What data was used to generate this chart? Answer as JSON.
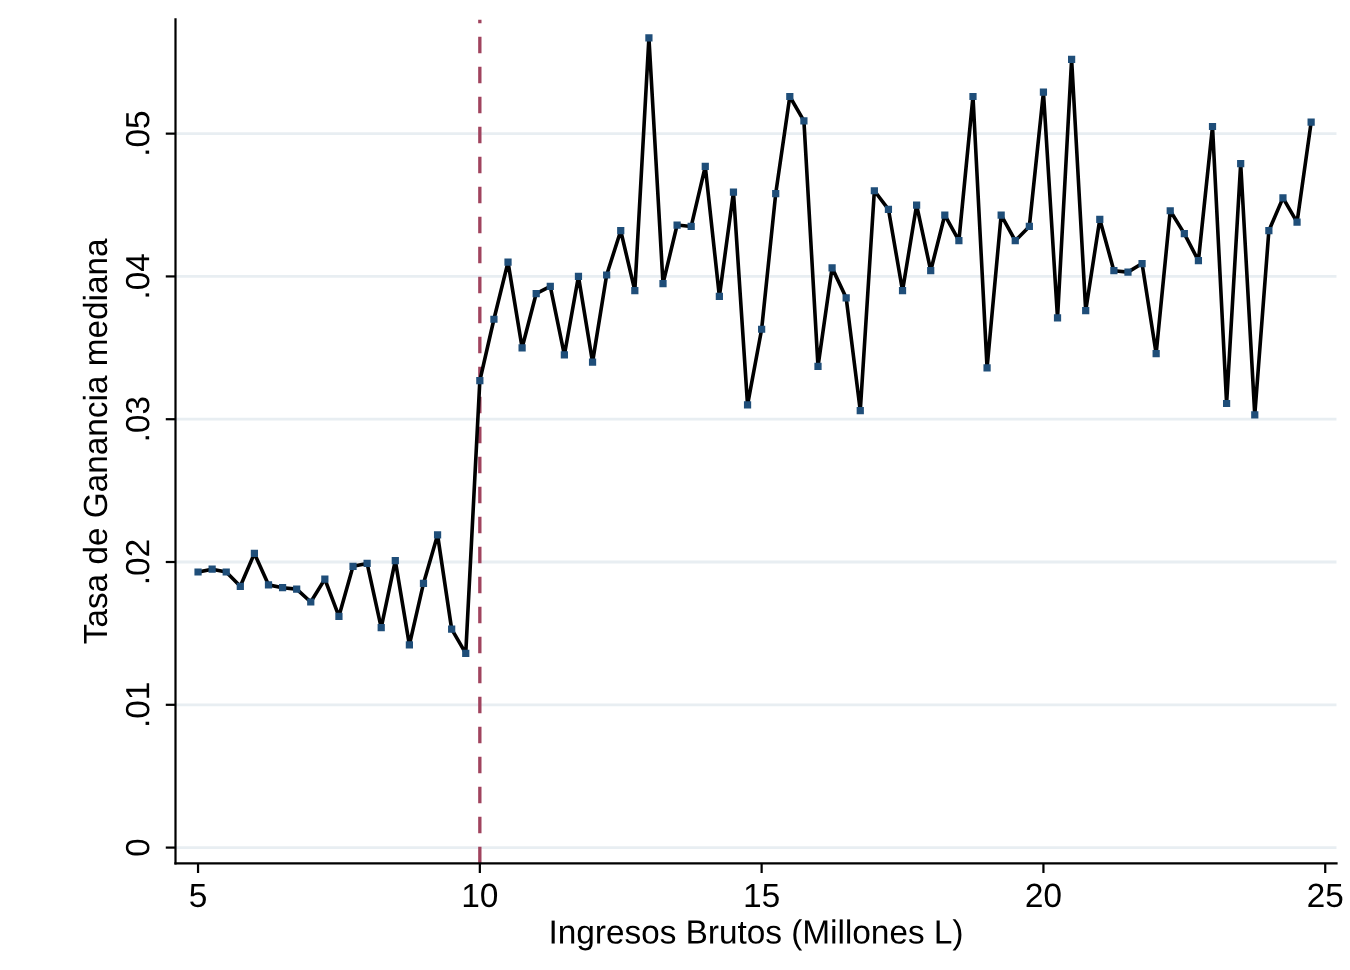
{
  "chart_data": {
    "type": "line",
    "xlabel": "Ingresos Brutos (Millones L)",
    "ylabel": "Tasa de Ganancia mediana",
    "x": [
      5,
      5.25,
      5.5,
      5.75,
      6,
      6.25,
      6.5,
      6.75,
      7,
      7.25,
      7.5,
      7.75,
      8,
      8.25,
      8.5,
      8.75,
      9,
      9.25,
      9.5,
      9.75,
      10,
      10.25,
      10.5,
      10.75,
      11,
      11.25,
      11.5,
      11.75,
      12,
      12.25,
      12.5,
      12.75,
      13,
      13.25,
      13.5,
      13.75,
      14,
      14.25,
      14.5,
      14.75,
      15,
      15.25,
      15.5,
      15.75,
      16,
      16.25,
      16.5,
      16.75,
      17,
      17.25,
      17.5,
      17.75,
      18,
      18.25,
      18.5,
      18.75,
      19,
      19.25,
      19.5,
      19.75,
      20,
      20.25,
      20.5,
      20.75,
      21,
      21.25,
      21.5,
      21.75,
      22,
      22.25,
      22.5,
      22.75,
      23,
      23.25,
      23.5,
      23.75,
      24,
      24.25,
      24.5,
      24.75
    ],
    "series": [
      {
        "color": "#000000",
        "values": [
          0.0193,
          0.0195,
          0.0193,
          0.0183,
          0.0206,
          0.0184,
          0.0182,
          0.0181,
          0.0172,
          0.0188,
          0.0162,
          0.0197,
          0.0199,
          0.0154,
          0.0201,
          0.0142,
          0.0185,
          0.0219,
          0.0153,
          0.0136,
          0.0327,
          0.037,
          0.041,
          0.035,
          0.0388,
          0.0393,
          0.0345,
          0.04,
          0.034,
          0.0401,
          0.0432,
          0.039,
          0.0567,
          0.0395,
          0.0436,
          0.0435,
          0.0477,
          0.0386,
          0.0459,
          0.031,
          0.0363,
          0.0458,
          0.0526,
          0.0509,
          0.0337,
          0.0406,
          0.0385,
          0.0306,
          0.046,
          0.0447,
          0.039,
          0.045,
          0.0404,
          0.0443,
          0.0425,
          0.0526,
          0.0336,
          0.0443,
          0.0425,
          0.0435,
          0.0529,
          0.0371,
          0.0552,
          0.0376,
          0.044,
          0.0404,
          0.0403,
          0.0409,
          0.0346,
          0.0446,
          0.043,
          0.0411,
          0.0505,
          0.0311,
          0.0479,
          0.0303,
          0.0432,
          0.0455,
          0.0438,
          0.0508
        ]
      }
    ],
    "xlim": [
      4.6,
      25.2
    ],
    "xticks": [
      5,
      10,
      15,
      20,
      25
    ],
    "ylim": [
      -0.0011,
      0.058
    ],
    "yticks": [
      {
        "value": 0,
        "label": "0"
      },
      {
        "value": 0.01,
        "label": ".01"
      },
      {
        "value": 0.02,
        "label": ".02"
      },
      {
        "value": 0.03,
        "label": ".03"
      },
      {
        "value": 0.04,
        "label": ".04"
      },
      {
        "value": 0.05,
        "label": ".05"
      }
    ],
    "grid": "y",
    "marker": "square",
    "line_style": "solid",
    "ref_lines": [
      {
        "axis": "x",
        "value": 10,
        "color": "#a0435e",
        "line_style": "dashed"
      }
    ]
  }
}
